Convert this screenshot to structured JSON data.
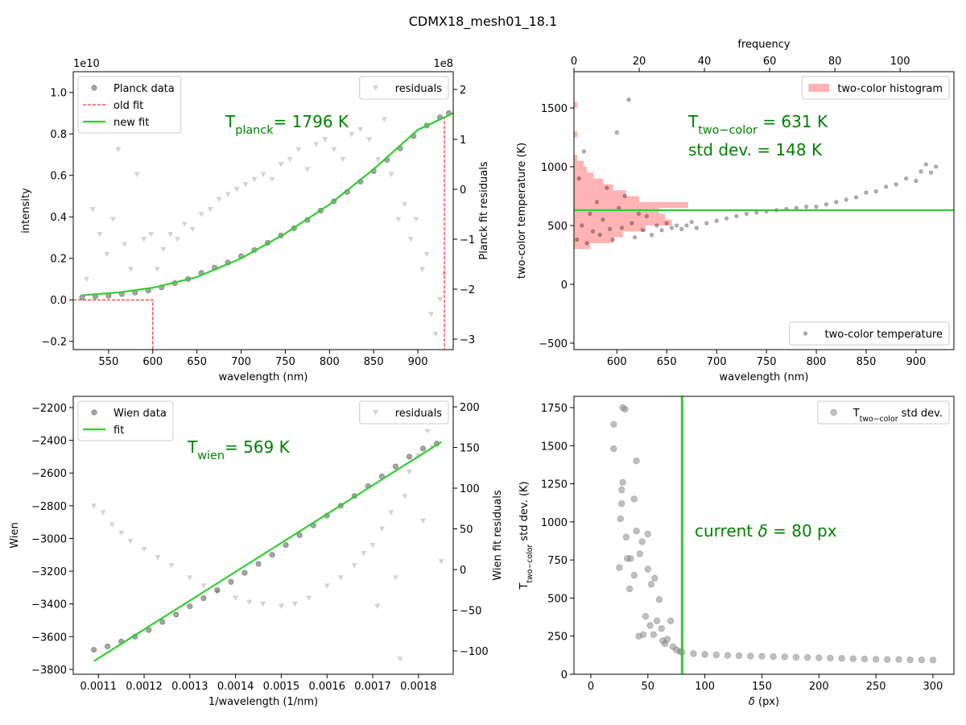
{
  "title": "CDMX18_mesh01_18.1",
  "chart_data": [
    {
      "type": "scatter",
      "x_label": "wavelength (nm)",
      "y_label": "intensity",
      "y2_label": "Planck fit residuals",
      "y_offset_label": "1e10",
      "y2_offset_label": "1e8",
      "xlim": [
        510,
        940
      ],
      "xticks": [
        550,
        600,
        650,
        700,
        750,
        800,
        850,
        900
      ],
      "ylim": [
        -0.24,
        1.1
      ],
      "yticks": [
        {
          "value": -0.2,
          "label": "−0.2"
        },
        {
          "value": 0,
          "label": "0.0"
        },
        0.2,
        0.4,
        0.6,
        0.8,
        {
          "value": 1,
          "label": "1.0"
        }
      ],
      "y2lim": [
        -3.21,
        2.355
      ],
      "y2ticks": [
        {
          "value": -3,
          "label": "−3"
        },
        {
          "value": -2,
          "label": "−2"
        },
        {
          "value": -1,
          "label": "−1"
        },
        0,
        1,
        2
      ],
      "legend_loc": "upper left",
      "legend2_loc": "upper right",
      "annotation_color": "green",
      "annotations": [
        {
          "parts": [
            {
              "text": "T"
            },
            {
              "text": "planck",
              "sub": true
            },
            {
              "text": "= 1796 K"
            }
          ]
        }
      ],
      "series": [
        {
          "name": "residuals",
          "kind": "markers",
          "marker": "v",
          "color": "gray",
          "alpha": 0.35,
          "axis": "y2",
          "x": [
            525,
            532,
            540,
            548,
            555,
            561,
            568,
            575,
            582,
            590,
            598,
            605,
            612,
            620,
            628,
            636,
            645,
            655,
            665,
            675,
            685,
            695,
            705,
            715,
            725,
            735,
            745,
            755,
            765,
            775,
            785,
            795,
            805,
            815,
            825,
            835,
            845,
            855,
            862,
            870,
            878,
            885,
            892,
            898,
            905,
            910,
            915,
            920,
            925,
            930
          ],
          "values": [
            -1.8,
            -0.4,
            -0.9,
            -1.3,
            -0.6,
            0.8,
            -1.1,
            -1.6,
            0.3,
            -1.0,
            -0.9,
            -1.6,
            -1.2,
            -0.9,
            -1.0,
            -0.7,
            -0.8,
            -0.5,
            -0.4,
            -0.2,
            -0.1,
            0.0,
            0.1,
            0.2,
            0.3,
            0.2,
            0.5,
            0.6,
            0.8,
            0.4,
            0.9,
            1.0,
            0.8,
            0.6,
            1.1,
            1.2,
            1.0,
            0.6,
            1.4,
            0.3,
            -0.6,
            -0.3,
            -1.0,
            -0.6,
            -1.6,
            -1.3,
            -2.5,
            -2.9,
            -2.2,
            -1.7
          ]
        },
        {
          "name": "Planck data",
          "kind": "markers",
          "marker": "o",
          "color": "black",
          "alpha": 0.35,
          "x": [
            520,
            535,
            550,
            565,
            580,
            595,
            610,
            625,
            640,
            655,
            670,
            685,
            700,
            715,
            730,
            745,
            760,
            775,
            790,
            805,
            820,
            835,
            850,
            865,
            880,
            895,
            910,
            925,
            935
          ],
          "values": [
            0.012,
            0.016,
            0.02,
            0.028,
            0.035,
            0.045,
            0.06,
            0.08,
            0.1,
            0.13,
            0.155,
            0.18,
            0.21,
            0.24,
            0.275,
            0.31,
            0.345,
            0.385,
            0.43,
            0.475,
            0.52,
            0.57,
            0.62,
            0.675,
            0.73,
            0.79,
            0.84,
            0.88,
            0.9
          ]
        },
        {
          "name": "old fit",
          "kind": "line",
          "dashed": true,
          "color": "red",
          "width": 1,
          "x": [
            510,
            600,
            600,
            930,
            930,
            940
          ],
          "values": [
            0,
            0,
            -1,
            -1,
            0.88,
            0.9
          ]
        },
        {
          "name": "new fit",
          "kind": "line",
          "color": "limegreen",
          "width": 2.2,
          "x": [
            520,
            560,
            600,
            650,
            700,
            750,
            800,
            850,
            900,
            940
          ],
          "values": [
            0.022,
            0.035,
            0.058,
            0.11,
            0.2,
            0.32,
            0.46,
            0.63,
            0.82,
            0.9
          ]
        }
      ]
    },
    {
      "type": "scatter",
      "x_label": "wavelength (nm)",
      "y_label": "two-color temperature (K)",
      "x2_label": "frequency",
      "xlim": [
        557,
        938
      ],
      "xticks": [
        600,
        650,
        700,
        750,
        800,
        850,
        900
      ],
      "x2lim": [
        0,
        116.5
      ],
      "x2ticks": [
        0,
        20,
        40,
        60,
        80,
        100
      ],
      "ylim": [
        -555,
        1808
      ],
      "yticks": [
        {
          "value": -500,
          "label": "−500"
        },
        0,
        500,
        1000,
        1500
      ],
      "legend_loc": "lower right",
      "legend2_loc": "upper right",
      "annotation_color": "green",
      "annotations": [
        {
          "parts": [
            {
              "text": "T"
            },
            {
              "text": "two−color",
              "sub": true
            },
            {
              "text": " = 631 K"
            }
          ]
        },
        {
          "parts": [
            {
              "text": "std dev. = 148 K"
            }
          ]
        }
      ],
      "series": [
        {
          "name": "two-color histogram",
          "kind": "hist",
          "color": "#ff9999",
          "alpha": 0.75,
          "axis": "x2",
          "bins": [
            300,
            350,
            400,
            450,
            500,
            550,
            600,
            650,
            700,
            750,
            800,
            850,
            900,
            950,
            1000,
            1050,
            1100,
            1150,
            1200,
            1250,
            1300,
            1350,
            1400,
            1450,
            1500,
            1550,
            1600
          ],
          "values": [
            5,
            12,
            15,
            22,
            30,
            28,
            26,
            35,
            20,
            16,
            12,
            9,
            6,
            4,
            3,
            1,
            0,
            0,
            0,
            1,
            0,
            0,
            0,
            0,
            1,
            0
          ]
        },
        {
          "name": "two-color temperature",
          "kind": "markers",
          "marker": "o",
          "color": "black",
          "alpha": 0.3,
          "size": 2.2,
          "x": [
            560,
            562,
            565,
            567,
            570,
            573,
            576,
            580,
            583,
            586,
            590,
            593,
            596,
            600,
            602,
            605,
            608,
            612,
            615,
            618,
            622,
            626,
            630,
            635,
            640,
            645,
            650,
            655,
            660,
            665,
            670,
            675,
            680,
            690,
            700,
            710,
            720,
            730,
            740,
            750,
            760,
            770,
            780,
            790,
            800,
            810,
            820,
            830,
            840,
            850,
            860,
            870,
            880,
            890,
            900,
            905,
            910,
            915,
            920
          ],
          "values": [
            380,
            900,
            500,
            1130,
            350,
            600,
            450,
            700,
            420,
            550,
            820,
            470,
            380,
            1290,
            650,
            480,
            750,
            1570,
            520,
            400,
            600,
            460,
            580,
            420,
            500,
            460,
            520,
            480,
            500,
            470,
            500,
            530,
            480,
            520,
            540,
            560,
            580,
            600,
            610,
            620,
            630,
            640,
            650,
            660,
            660,
            680,
            700,
            720,
            740,
            780,
            790,
            830,
            850,
            900,
            880,
            960,
            1020,
            950,
            1000
          ]
        },
        {
          "kind": "hline",
          "color": "limegreen",
          "width": 2.2,
          "values": [
            631
          ]
        }
      ]
    },
    {
      "type": "scatter",
      "x_label": "1/wavelength (1/nm)",
      "y_label": "Wien",
      "y2_label": "Wien fit residuals",
      "xlim": [
        0.001045,
        0.001876
      ],
      "xticks": [
        0.0011,
        0.0012,
        0.0013,
        0.0014,
        0.0015,
        0.0016,
        0.0017,
        0.0018
      ],
      "ylim": [
        -3830,
        -2131
      ],
      "yticks": [
        {
          "value": -3800,
          "label": "−3800"
        },
        {
          "value": -3600,
          "label": "−3600"
        },
        {
          "value": -3400,
          "label": "−3400"
        },
        {
          "value": -3200,
          "label": "−3200"
        },
        {
          "value": -3000,
          "label": "−3000"
        },
        {
          "value": -2800,
          "label": "−2800"
        },
        {
          "value": -2600,
          "label": "−2600"
        },
        {
          "value": -2400,
          "label": "−2400"
        },
        {
          "value": -2200,
          "label": "−2200"
        }
      ],
      "y2lim": [
        -128.7,
        212.9
      ],
      "y2ticks": [
        {
          "value": -100,
          "label": "−100"
        },
        {
          "value": -50,
          "label": "−50"
        },
        0,
        50,
        100,
        150,
        200
      ],
      "legend_loc": "upper left",
      "legend2_loc": "upper right",
      "annotation_color": "green",
      "annotations": [
        {
          "parts": [
            {
              "text": "T"
            },
            {
              "text": "wien",
              "sub": true
            },
            {
              "text": "= 569 K"
            }
          ]
        }
      ],
      "series": [
        {
          "name": "residuals",
          "kind": "markers",
          "marker": "v",
          "color": "gray",
          "alpha": 0.35,
          "axis": "y2",
          "x": [
            0.00109,
            0.00111,
            0.00113,
            0.00115,
            0.00117,
            0.0012,
            0.00123,
            0.00126,
            0.0013,
            0.00133,
            0.00136,
            0.0014,
            0.00143,
            0.00146,
            0.0015,
            0.00153,
            0.00156,
            0.0016,
            0.00163,
            0.00166,
            0.00168,
            0.0017,
            0.00171,
            0.00172,
            0.00174,
            0.00175,
            0.00176,
            0.00177,
            0.00178,
            0.0018,
            0.00181,
            0.00182,
            0.00183,
            0.00184,
            0.00185
          ],
          "values": [
            78,
            70,
            55,
            45,
            35,
            25,
            15,
            5,
            -10,
            -20,
            -28,
            -35,
            -40,
            -42,
            -45,
            -42,
            -35,
            -20,
            -10,
            5,
            20,
            30,
            -45,
            50,
            70,
            -10,
            -110,
            90,
            120,
            140,
            60,
            170,
            150,
            190,
            10
          ]
        },
        {
          "name": "Wien data",
          "kind": "markers",
          "marker": "o",
          "color": "black",
          "alpha": 0.35,
          "x": [
            0.00109,
            0.00112,
            0.00115,
            0.00118,
            0.00121,
            0.00124,
            0.00127,
            0.0013,
            0.00133,
            0.00136,
            0.00139,
            0.00142,
            0.00145,
            0.00148,
            0.00151,
            0.00154,
            0.00157,
            0.0016,
            0.00163,
            0.00166,
            0.00169,
            0.00172,
            0.00175,
            0.00178,
            0.00181,
            0.00184
          ],
          "values": [
            -3680,
            -3660,
            -3630,
            -3600,
            -3560,
            -3510,
            -3465,
            -3415,
            -3365,
            -3315,
            -3265,
            -3210,
            -3155,
            -3100,
            -3040,
            -2980,
            -2920,
            -2860,
            -2800,
            -2740,
            -2680,
            -2620,
            -2560,
            -2500,
            -2450,
            -2420
          ]
        },
        {
          "name": "fit",
          "kind": "line",
          "color": "limegreen",
          "width": 2.2,
          "x": [
            0.00109,
            0.00185
          ],
          "values": [
            -3750,
            -2410
          ]
        }
      ]
    },
    {
      "type": "scatter",
      "x_label": [
        {
          "text": "δ",
          "italic": true
        },
        {
          "text": " (px)"
        }
      ],
      "y_label": [
        {
          "text": "T"
        },
        {
          "text": "two−color",
          "sub": true
        },
        {
          "text": " std dev. (K)"
        }
      ],
      "xlim": [
        -14.8,
        318.4
      ],
      "xticks": [
        0,
        50,
        100,
        150,
        200,
        250,
        300
      ],
      "ylim": [
        0,
        1824
      ],
      "yticks": [
        0,
        250,
        500,
        750,
        1000,
        1250,
        1500,
        1750
      ],
      "legend_loc": "upper right",
      "annotation_color": "green",
      "annotations": [
        {
          "parts": [
            {
              "text": "current "
            },
            {
              "text": "δ",
              "italic": true
            },
            {
              "text": " = 80 px"
            }
          ]
        }
      ],
      "series": [
        {
          "name": [
            {
              "text": "T"
            },
            {
              "text": "two−color",
              "sub": true
            },
            {
              "text": " std dev."
            }
          ],
          "kind": "markers",
          "marker": "o",
          "color": "gray",
          "alpha": 0.5,
          "size": 3.8,
          "x": [
            20,
            20,
            25,
            26,
            27,
            27,
            28,
            28,
            30,
            31,
            32,
            34,
            35,
            38,
            38,
            40,
            40,
            42,
            43,
            45,
            46,
            48,
            50,
            50,
            52,
            53,
            55,
            56,
            58,
            60,
            62,
            63,
            65,
            67,
            70,
            72,
            75,
            78,
            80,
            90,
            100,
            110,
            120,
            130,
            140,
            150,
            160,
            170,
            180,
            190,
            200,
            210,
            220,
            230,
            240,
            250,
            260,
            270,
            280,
            290,
            300
          ],
          "values": [
            1640,
            1480,
            700,
            1020,
            1120,
            1210,
            1260,
            1750,
            1740,
            900,
            760,
            560,
            760,
            650,
            1150,
            940,
            1400,
            250,
            790,
            870,
            260,
            380,
            920,
            690,
            320,
            590,
            260,
            630,
            350,
            490,
            300,
            220,
            200,
            230,
            350,
            180,
            160,
            150,
            145,
            135,
            130,
            127,
            124,
            122,
            120,
            118,
            116,
            114,
            112,
            110,
            108,
            106,
            104,
            102,
            100,
            98,
            97,
            96,
            95,
            94,
            93
          ]
        },
        {
          "kind": "vline",
          "color": "limegreen",
          "width": 3,
          "values": [
            80
          ]
        }
      ]
    }
  ]
}
